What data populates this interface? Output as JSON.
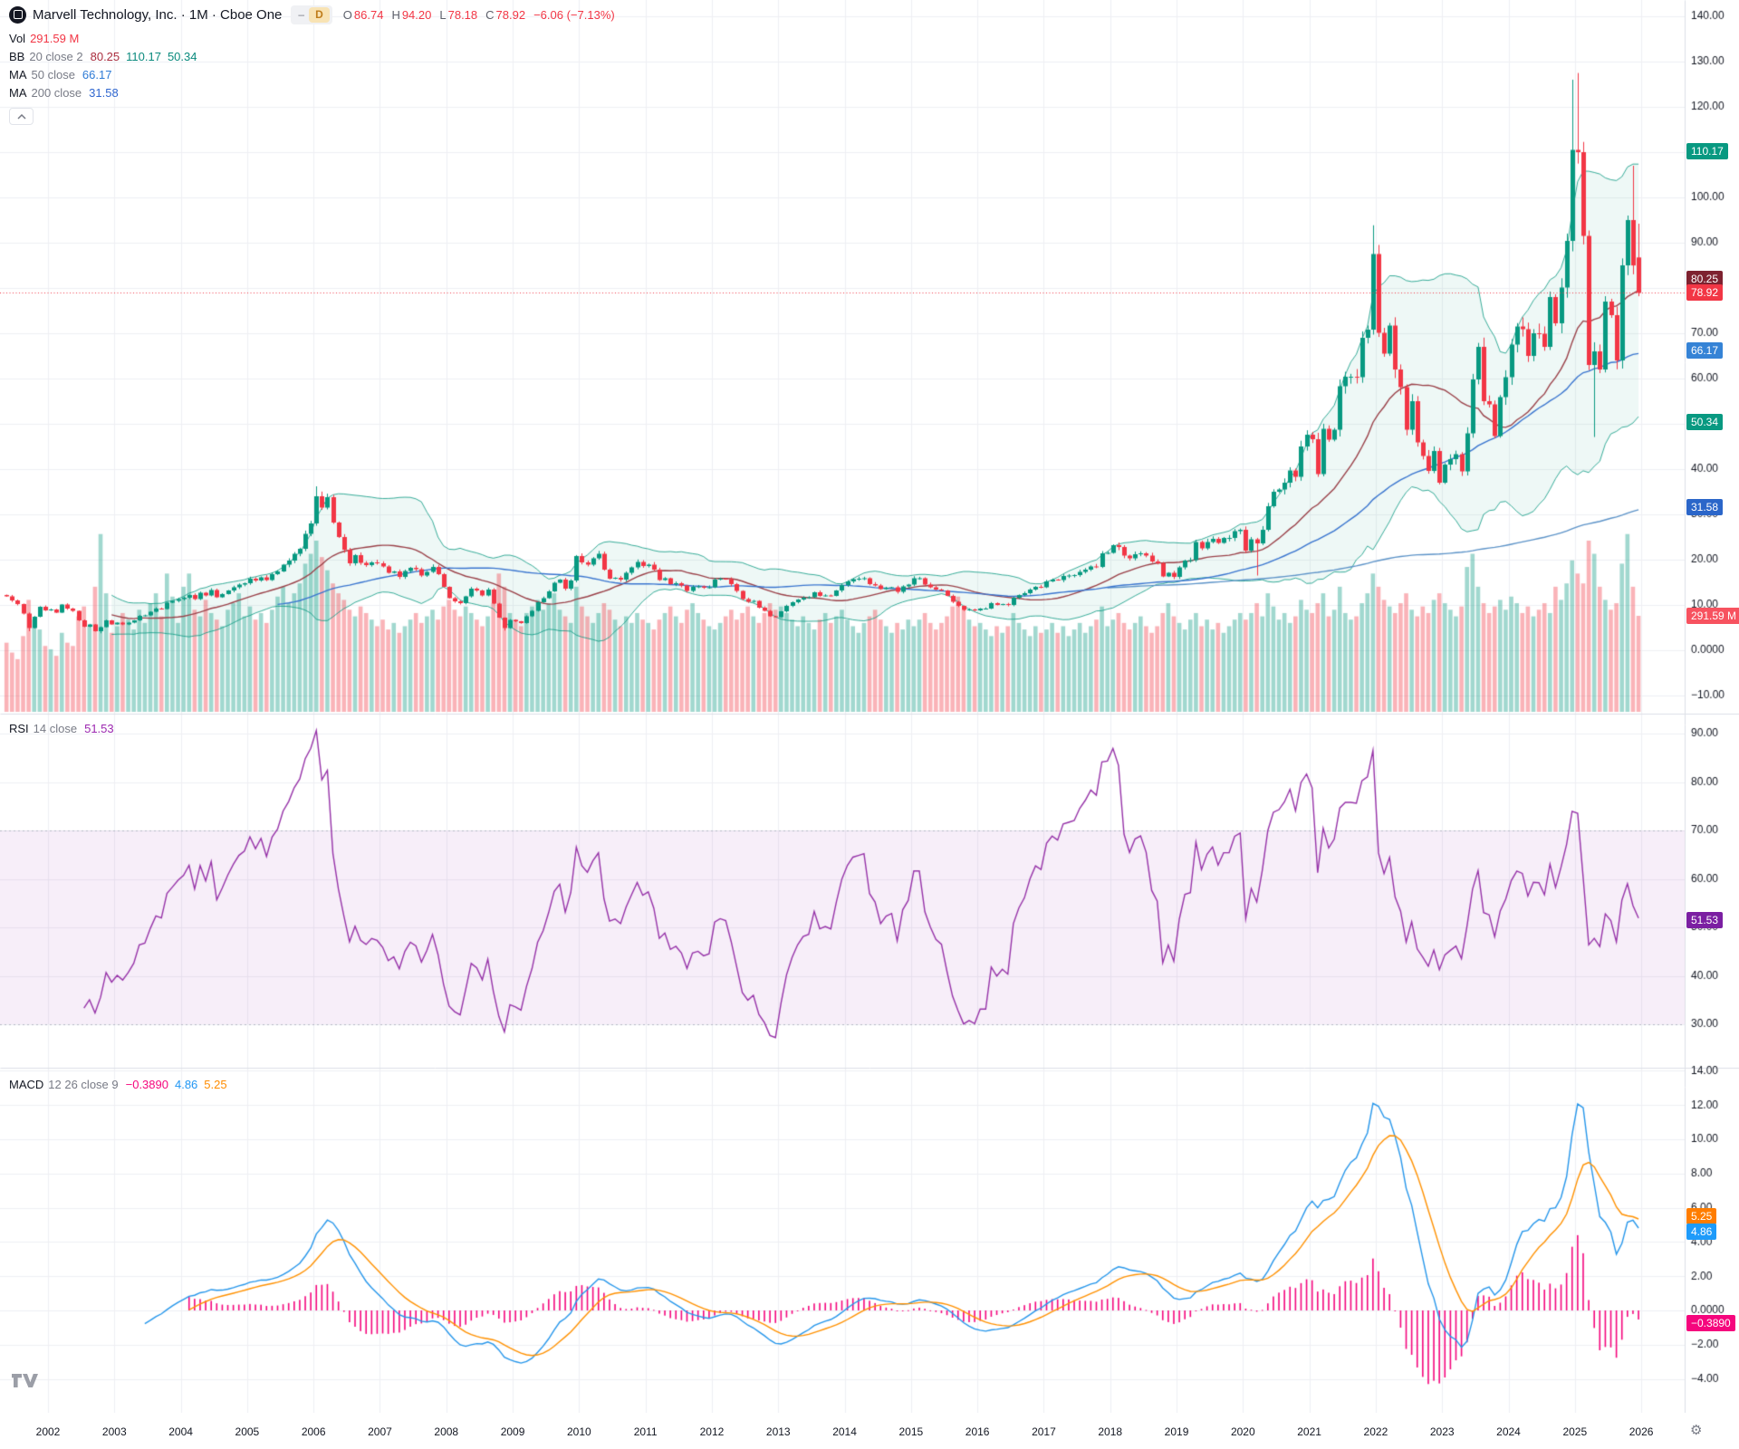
{
  "header": {
    "title": "Marvell Technology, Inc. · 1M · Cboe One",
    "interval_badge": "D",
    "collapse_dash": "–",
    "ohlc": {
      "o_label": "O",
      "o": "86.74",
      "h_label": "H",
      "h": "94.20",
      "l_label": "L",
      "l": "78.18",
      "c_label": "C",
      "c": "78.92"
    },
    "change": "−6.06 (−7.13%)"
  },
  "legend": {
    "vol": {
      "label": "Vol",
      "value": "291.59 M"
    },
    "bb": {
      "name": "BB",
      "params": "20 close 2",
      "basis": "80.25",
      "upper": "110.17",
      "lower": "50.34"
    },
    "ma50": {
      "name": "MA",
      "params": "50 close",
      "value": "66.17"
    },
    "ma200": {
      "name": "MA",
      "params": "200 close",
      "value": "31.58"
    },
    "rsi": {
      "name": "RSI",
      "params": "14 close",
      "value": "51.53"
    },
    "macd": {
      "name": "MACD",
      "params": "12 26 close 9",
      "hist": "−0.3890",
      "macd": "4.86",
      "signal": "5.25"
    }
  },
  "colors": {
    "up": "#089981",
    "down": "#f23645",
    "vol_up": "rgba(8,153,129,0.38)",
    "vol_down": "rgba(242,54,69,0.38)",
    "bb_line": "rgba(8,153,129,0.8)",
    "bb_fill": "rgba(8,153,129,0.07)",
    "bb_basis": "#9a4048",
    "ma50": "#3874cf",
    "ma200": "#5c93c8",
    "rsi": "#9632a8",
    "rsi_band": "rgba(156,39,176,0.08)",
    "rsi_band_edge": "#b6b9c6",
    "macd": "#2596eb",
    "signal": "#ff9100",
    "hist": "#f5067d",
    "grid": "#eef0f4",
    "separator": "#dde0e7",
    "axis_text": "#131722",
    "price_dotted": "#f23645"
  },
  "badges": [
    {
      "id": "bb-upper",
      "pane": "main",
      "value": 110.17,
      "label": "110.17",
      "bg": "#089981"
    },
    {
      "id": "bb-basis",
      "pane": "main",
      "value": 80.25,
      "label": "80.25",
      "bg": "#7e2230"
    },
    {
      "id": "last-price",
      "pane": "main",
      "value": 78.92,
      "label": "78.92",
      "bg": "#f23645"
    },
    {
      "id": "ma50",
      "pane": "main",
      "value": 66.17,
      "label": "66.17",
      "bg": "#3583d6"
    },
    {
      "id": "bb-lower",
      "pane": "main",
      "value": 50.34,
      "label": "50.34",
      "bg": "#089981"
    },
    {
      "id": "ma200",
      "pane": "main",
      "value": 31.58,
      "label": "31.58",
      "bg": "#2b66c9"
    },
    {
      "id": "volume",
      "pane": "volume",
      "value": 291.59,
      "label": "291.59 M",
      "bg": "#f7525f"
    },
    {
      "id": "rsi",
      "pane": "rsi",
      "value": 51.53,
      "label": "51.53",
      "bg": "#7b1fa2"
    },
    {
      "id": "macd-signal",
      "pane": "macd",
      "value": 5.25,
      "label": "5.25",
      "bg": "#ff7d00"
    },
    {
      "id": "macd-line",
      "pane": "macd",
      "value": 4.86,
      "label": "4.86",
      "bg": "#1e9bfa"
    },
    {
      "id": "macd-hist",
      "pane": "macd",
      "value": -0.389,
      "label": "−0.3890",
      "bg": "#f5067d"
    }
  ],
  "time_axis": {
    "years": [
      "2002",
      "2003",
      "2004",
      "2005",
      "2006",
      "2007",
      "2008",
      "2009",
      "2010",
      "2011",
      "2012",
      "2013",
      "2014",
      "2015",
      "2016",
      "2017",
      "2018",
      "2019",
      "2020",
      "2021",
      "2022",
      "2023",
      "2024",
      "2025",
      "2026"
    ]
  },
  "chart_data": {
    "type": "candlestick",
    "symbol": "Marvell Technology, Inc.",
    "exchange": "Cboe One",
    "interval": "1M",
    "start_month": "2001-05",
    "price_line": 78.92,
    "last_candle": {
      "open": 86.74,
      "high": 94.2,
      "low": 78.18,
      "close": 78.92,
      "change": -6.06,
      "change_pct": -7.13,
      "volume_m": 291.59
    },
    "indicators": {
      "bb": {
        "length": 20,
        "source": "close",
        "stdev": 2,
        "basis": 80.25,
        "upper": 110.17,
        "lower": 50.34
      },
      "ma50": {
        "length": 50,
        "source": "close",
        "value": 66.17
      },
      "ma200": {
        "length": 200,
        "source": "close",
        "value": 31.58
      },
      "rsi": {
        "length": 14,
        "source": "close",
        "value": 51.53,
        "upper_band": 70,
        "lower_band": 30
      },
      "macd": {
        "fast": 12,
        "slow": 26,
        "source": "close",
        "smoothing": 9,
        "histogram": -0.389,
        "macd": 4.86,
        "signal": 5.25
      }
    },
    "months_closes": [
      11.9,
      11.0,
      10.2,
      8.1,
      4.9,
      7.4,
      9.6,
      8.8,
      9.0,
      8.3,
      10.1,
      9.2,
      8.7,
      6.6,
      5.2,
      5.7,
      4.2,
      5.1,
      6.6,
      5.7,
      6.1,
      5.7,
      6.1,
      6.6,
      7.6,
      7.7,
      8.5,
      9.2,
      9.1,
      10.5,
      10.9,
      11.3,
      11.6,
      12.2,
      11.3,
      12.7,
      12.1,
      13.3,
      11.7,
      12.4,
      13.2,
      13.9,
      14.5,
      14.8,
      15.8,
      15.4,
      16.1,
      15.5,
      16.8,
      17.4,
      18.9,
      19.8,
      21.3,
      22.4,
      25.7,
      28.0,
      34.0,
      31.5,
      33.8,
      28.2,
      25.0,
      22.2,
      19.2,
      21.0,
      19.3,
      18.8,
      19.4,
      19.2,
      18.5,
      17.1,
      17.4,
      16.2,
      17.5,
      18.2,
      17.9,
      16.5,
      17.3,
      18.4,
      16.8,
      14.0,
      11.5,
      10.8,
      10.4,
      11.9,
      13.6,
      13.2,
      12.1,
      13.4,
      10.3,
      7.2,
      4.9,
      6.7,
      6.4,
      6.0,
      7.5,
      8.7,
      10.6,
      11.5,
      13.0,
      14.9,
      15.6,
      13.6,
      15.4,
      20.8,
      19.4,
      18.9,
      20.3,
      21.3,
      17.8,
      15.8,
      16.0,
      15.6,
      17.1,
      18.3,
      19.5,
      18.6,
      18.9,
      17.8,
      15.5,
      15.9,
      14.6,
      14.8,
      14.3,
      13.1,
      14.0,
      14.1,
      13.8,
      13.9,
      15.6,
      15.8,
      15.7,
      14.6,
      13.1,
      11.3,
      10.7,
      10.9,
      9.4,
      8.7,
      7.5,
      7.3,
      8.6,
      9.8,
      10.6,
      11.2,
      11.6,
      11.7,
      12.8,
      12.0,
      12.1,
      12.0,
      13.2,
      14.4,
      15.2,
      15.7,
      15.8,
      15.9,
      14.6,
      14.3,
      13.5,
      13.8,
      13.9,
      12.9,
      14.1,
      14.5,
      15.9,
      15.9,
      14.5,
      13.9,
      13.4,
      13.2,
      12.0,
      10.7,
      9.8,
      8.9,
      9.0,
      8.8,
      9.2,
      9.2,
      10.4,
      10.0,
      10.2,
      10.0,
      11.6,
      12.2,
      12.6,
      13.4,
      14.0,
      13.9,
      15.2,
      15.6,
      15.5,
      16.4,
      16.5,
      16.6,
      17.3,
      17.8,
      18.5,
      18.4,
      21.4,
      21.5,
      23.2,
      22.8,
      20.9,
      20.3,
      21.2,
      21.4,
      20.9,
      19.6,
      19.2,
      16.3,
      17.1,
      16.2,
      18.3,
      19.8,
      19.9,
      23.9,
      22.5,
      23.9,
      24.6,
      23.7,
      24.8,
      24.8,
      26.3,
      26.6,
      22.0,
      24.5,
      23.6,
      26.6,
      31.8,
      35.0,
      35.5,
      37.0,
      39.7,
      38.3,
      45.0,
      47.6,
      46.6,
      38.9,
      48.9,
      46.5,
      48.7,
      58.3,
      60.4,
      60.4,
      60.3,
      69.0,
      70.8,
      87.5,
      70.1,
      65.5,
      71.7,
      62.0,
      58.1,
      48.7,
      55.0,
      45.9,
      42.9,
      39.6,
      44.0,
      37.0,
      41.0,
      42.2,
      43.3,
      39.5,
      47.9,
      59.8,
      67.0,
      55.0,
      54.3,
      47.3,
      55.9,
      60.3,
      67.5,
      71.5,
      70.9,
      65.0,
      70.0,
      69.9,
      67.0,
      78.0,
      72.2,
      80.1,
      90.4,
      110.5,
      110.0,
      91.5,
      63.0,
      66.0,
      62.0,
      77.0,
      74.0,
      64.0,
      85.0,
      95.0,
      84.98,
      78.92
    ],
    "volumes_millions": [
      210,
      180,
      160,
      230,
      340,
      280,
      250,
      200,
      190,
      170,
      240,
      210,
      200,
      290,
      320,
      260,
      380,
      540,
      360,
      240,
      260,
      300,
      280,
      250,
      310,
      270,
      330,
      360,
      290,
      420,
      350,
      270,
      380,
      420,
      310,
      290,
      340,
      300,
      280,
      260,
      310,
      330,
      360,
      290,
      320,
      280,
      300,
      270,
      310,
      350,
      380,
      330,
      360,
      390,
      450,
      480,
      520,
      470,
      430,
      390,
      360,
      340,
      310,
      290,
      320,
      300,
      280,
      260,
      280,
      250,
      270,
      240,
      260,
      280,
      300,
      270,
      290,
      310,
      280,
      320,
      340,
      310,
      290,
      320,
      300,
      280,
      260,
      290,
      330,
      420,
      380,
      300,
      280,
      260,
      300,
      320,
      340,
      310,
      330,
      360,
      310,
      290,
      270,
      380,
      320,
      290,
      270,
      300,
      330,
      310,
      280,
      260,
      290,
      270,
      300,
      280,
      270,
      250,
      280,
      300,
      320,
      290,
      270,
      310,
      330,
      300,
      280,
      260,
      250,
      270,
      290,
      310,
      280,
      300,
      320,
      290,
      270,
      300,
      330,
      310,
      320,
      300,
      280,
      260,
      290,
      270,
      250,
      280,
      300,
      270,
      290,
      310,
      280,
      260,
      240,
      270,
      290,
      310,
      280,
      260,
      240,
      270,
      250,
      280,
      260,
      280,
      300,
      270,
      250,
      270,
      290,
      320,
      350,
      310,
      280,
      260,
      270,
      250,
      230,
      260,
      240,
      260,
      300,
      270,
      250,
      230,
      260,
      240,
      250,
      270,
      240,
      260,
      230,
      250,
      270,
      240,
      260,
      280,
      320,
      260,
      280,
      300,
      270,
      250,
      270,
      290,
      260,
      240,
      260,
      300,
      330,
      290,
      270,
      250,
      280,
      300,
      260,
      280,
      250,
      270,
      240,
      260,
      280,
      300,
      280,
      300,
      330,
      290,
      360,
      320,
      280,
      300,
      270,
      290,
      340,
      310,
      300,
      330,
      360,
      290,
      310,
      380,
      300,
      280,
      290,
      330,
      360,
      420,
      380,
      340,
      320,
      300,
      330,
      360,
      310,
      290,
      320,
      300,
      340,
      360,
      330,
      310,
      290,
      320,
      440,
      480,
      380,
      330,
      300,
      320,
      340,
      310,
      350,
      330,
      300,
      320,
      290,
      310,
      330,
      300,
      380,
      340,
      390,
      460,
      420,
      390,
      520,
      480,
      380,
      340,
      310,
      330,
      450,
      540,
      380,
      291.59
    ],
    "candle_overrides": {
      "4": {
        "l": 4.2
      },
      "17": {
        "l": 3.75
      },
      "56": {
        "h": 36.2
      },
      "90": {
        "l": 4.35
      },
      "226": {
        "l": 16.5
      },
      "247": {
        "h": 93.85
      },
      "283": {
        "h": 126.0
      },
      "284": {
        "h": 127.48
      },
      "287": {
        "l": 47.09
      },
      "294": {
        "h": 107.0
      },
      "295": {
        "o": 86.74,
        "h": 94.2,
        "l": 78.18
      }
    },
    "axes": {
      "main": {
        "ticks": [
          {
            "v": 140,
            "t": "140.00"
          },
          {
            "v": 130,
            "t": "130.00"
          },
          {
            "v": 120,
            "t": "120.00"
          },
          {
            "v": 110,
            "t": "110.00"
          },
          {
            "v": 100,
            "t": "100.00"
          },
          {
            "v": 90,
            "t": "90.00"
          },
          {
            "v": 80,
            "t": "80.00"
          },
          {
            "v": 70,
            "t": "70.00"
          },
          {
            "v": 60,
            "t": "60.00"
          },
          {
            "v": 50,
            "t": "50.00"
          },
          {
            "v": 40,
            "t": "40.00"
          },
          {
            "v": 30,
            "t": "30.00"
          },
          {
            "v": 20,
            "t": "20.00"
          },
          {
            "v": 10,
            "t": "10.00"
          },
          {
            "v": 0,
            "t": "0.0000"
          },
          {
            "v": -10,
            "t": "−10.00"
          }
        ]
      },
      "rsi": {
        "ticks": [
          {
            "v": 90,
            "t": "90.00"
          },
          {
            "v": 80,
            "t": "80.00"
          },
          {
            "v": 70,
            "t": "70.00"
          },
          {
            "v": 60,
            "t": "60.00"
          },
          {
            "v": 50,
            "t": "50.00"
          },
          {
            "v": 40,
            "t": "40.00"
          },
          {
            "v": 30,
            "t": "30.00"
          }
        ]
      },
      "macd": {
        "ticks": [
          {
            "v": 14,
            "t": "14.00"
          },
          {
            "v": 12,
            "t": "12.00"
          },
          {
            "v": 10,
            "t": "10.00"
          },
          {
            "v": 8,
            "t": "8.00"
          },
          {
            "v": 6,
            "t": "6.00"
          },
          {
            "v": 4,
            "t": "4.00"
          },
          {
            "v": 2,
            "t": "2.00"
          },
          {
            "v": 0,
            "t": "0.0000"
          },
          {
            "v": -2,
            "t": "−2.00"
          },
          {
            "v": -4,
            "t": "−4.00"
          }
        ]
      }
    }
  }
}
